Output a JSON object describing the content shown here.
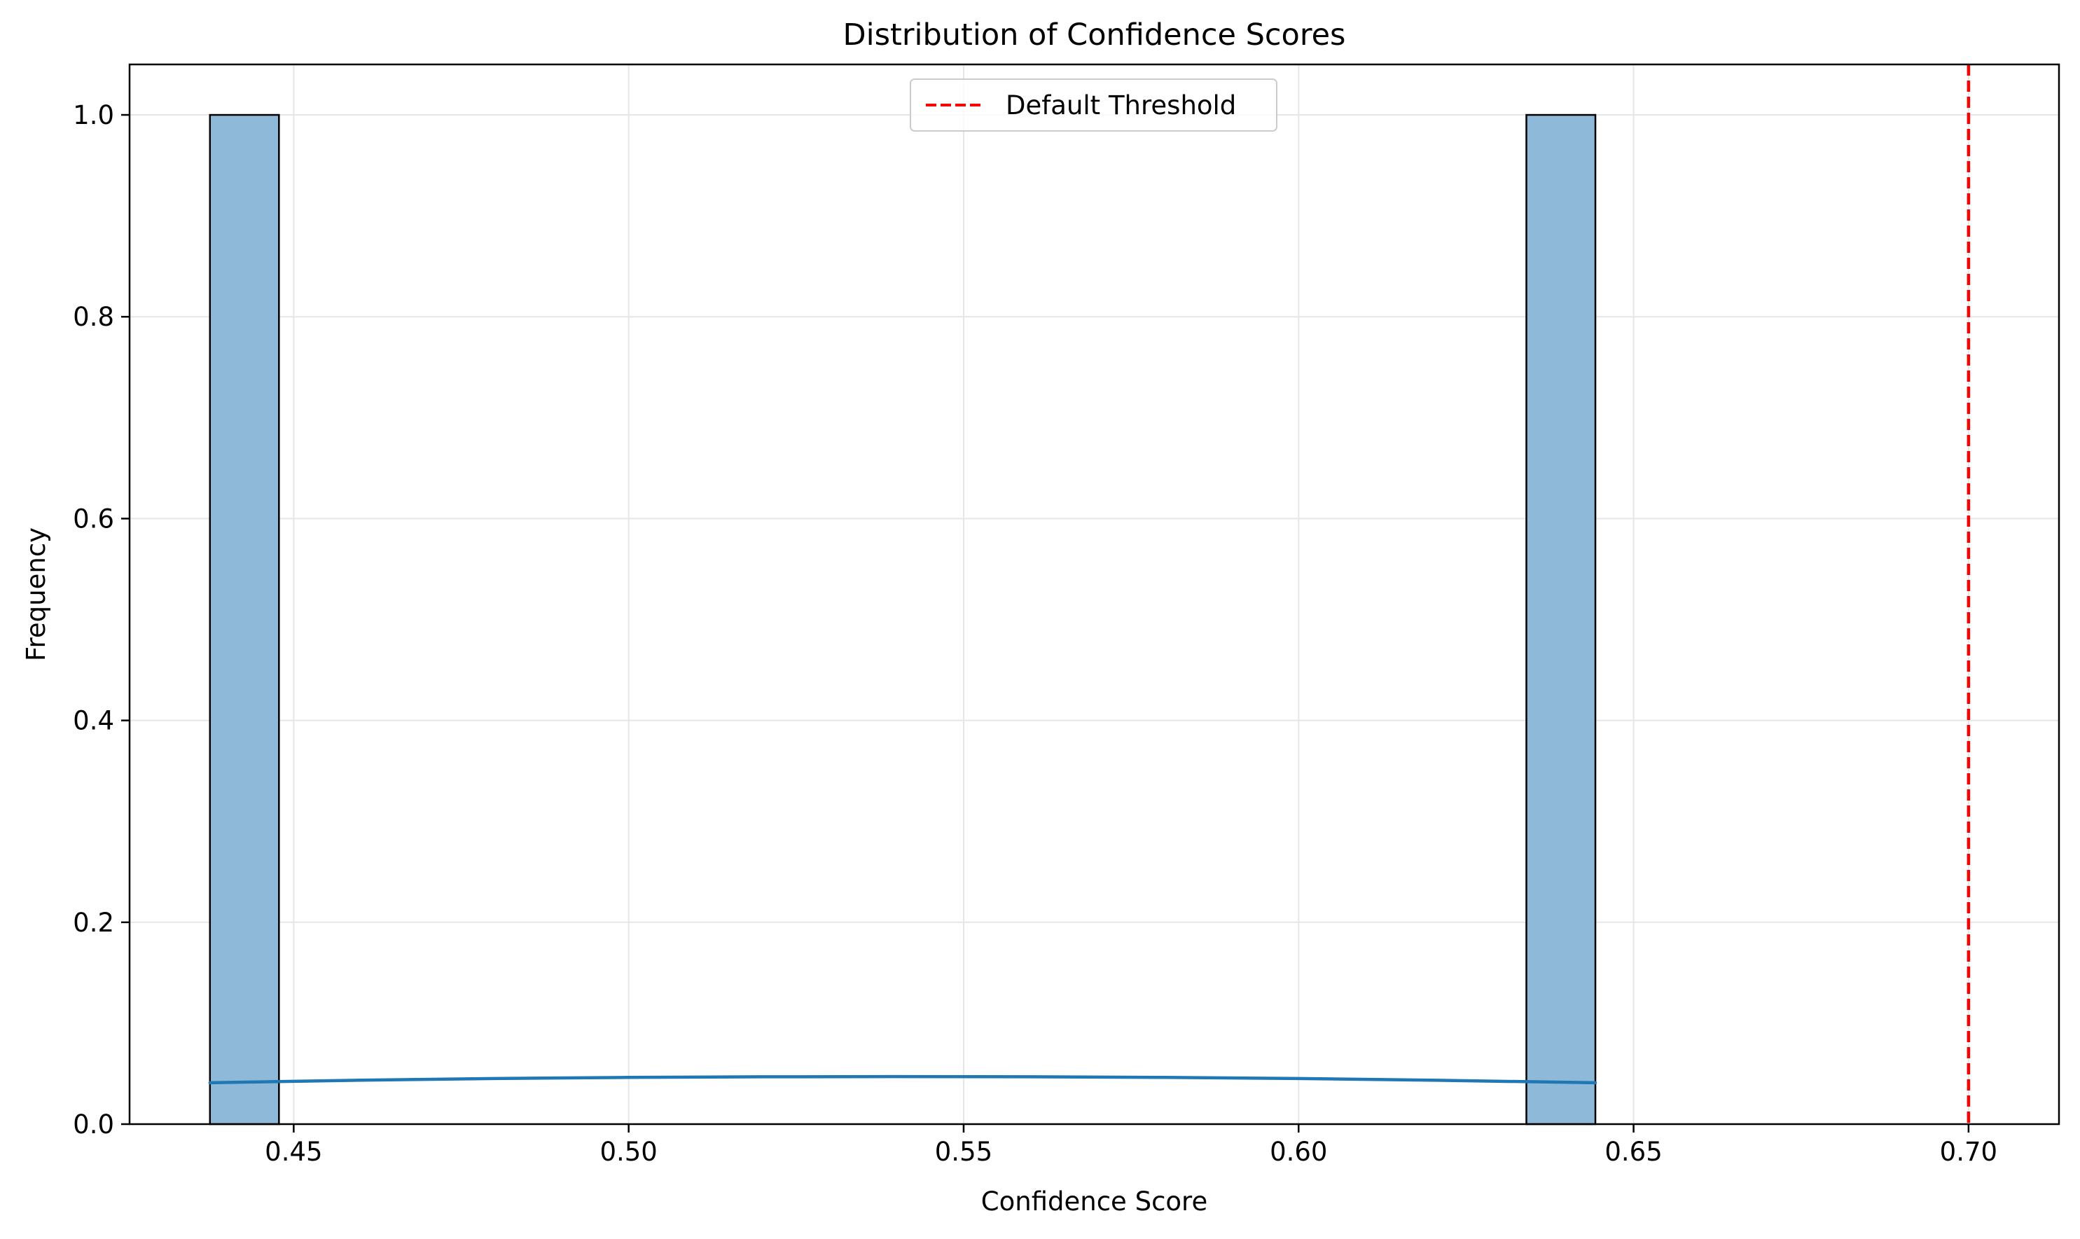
{
  "chart_data": {
    "type": "bar",
    "title": "Distribution of Confidence Scores",
    "xlabel": "Confidence Score",
    "ylabel": "Frequency",
    "xlim": [
      0.4255,
      0.7135
    ],
    "ylim": [
      0,
      1.05
    ],
    "xticks": [
      0.45,
      0.5,
      0.55,
      0.6,
      0.65,
      0.7
    ],
    "xtick_labels": [
      "0.45",
      "0.50",
      "0.55",
      "0.60",
      "0.65",
      "0.70"
    ],
    "yticks": [
      0.0,
      0.2,
      0.4,
      0.6,
      0.8,
      1.0
    ],
    "ytick_labels": [
      "0.0",
      "0.2",
      "0.4",
      "0.6",
      "0.8",
      "1.0"
    ],
    "grid": true,
    "bars": [
      {
        "x0": 0.4375,
        "x1": 0.4478,
        "value": 1
      },
      {
        "x0": 0.634,
        "x1": 0.6443,
        "value": 1
      }
    ],
    "kde": {
      "x": [
        0.4375,
        0.46,
        0.48,
        0.5,
        0.52,
        0.54,
        0.56,
        0.58,
        0.6,
        0.62,
        0.6443
      ],
      "y": [
        0.041,
        0.0435,
        0.0452,
        0.0463,
        0.0469,
        0.0471,
        0.0469,
        0.0463,
        0.0452,
        0.0435,
        0.041
      ]
    },
    "threshold": {
      "x": 0.7,
      "label": "Default Threshold"
    },
    "legend_position": "top-center",
    "colors": {
      "bar_fill": "#8fb9d9",
      "bar_edge": "#000000",
      "kde": "#1f77b4",
      "threshold": "#ff0000",
      "grid": "#e6e6e6"
    }
  }
}
